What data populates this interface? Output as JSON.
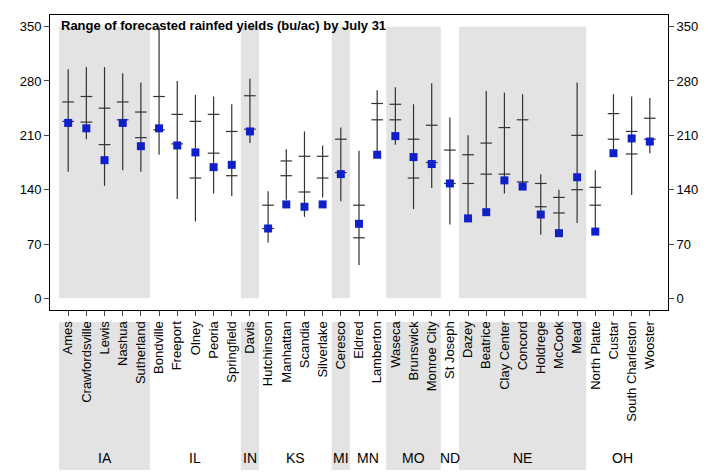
{
  "chart_data": {
    "type": "range",
    "title": "Range of forecasted rainfed yields (bu/ac) by July 31",
    "categories": [
      "Ames",
      "Crawfordsville",
      "Lewis",
      "Nashua",
      "Sutherland",
      "Bondville",
      "Freeport",
      "Olney",
      "Peoria",
      "Springfield",
      "Davis",
      "Hutchinson",
      "Manhattan",
      "Scandia",
      "Silverlake",
      "Ceresco",
      "Eldred",
      "Lamberton",
      "Waseca",
      "Brunswick",
      "Monroe City",
      "St Joseph",
      "Dazey",
      "Beatrice",
      "Clay Center",
      "Concord",
      "Holdrege",
      "McCook",
      "Mead",
      "North Platte",
      "Custar",
      "South Charleston",
      "Wooster"
    ],
    "states": [
      "IA",
      "IA",
      "IA",
      "IA",
      "IA",
      "IL",
      "IL",
      "IL",
      "IL",
      "IL",
      "IN",
      "KS",
      "KS",
      "KS",
      "KS",
      "MI",
      "MN",
      "MN",
      "MO",
      "MO",
      "MO",
      "ND",
      "NE",
      "NE",
      "NE",
      "NE",
      "NE",
      "NE",
      "NE",
      "OH",
      "OH",
      "OH",
      "OH"
    ],
    "min": [
      163,
      205,
      145,
      165,
      163,
      185,
      128,
      99,
      135,
      132,
      200,
      72,
      127,
      105,
      130,
      125,
      43,
      185,
      198,
      115,
      142,
      95,
      105,
      110,
      135,
      140,
      82,
      85,
      97,
      85,
      185,
      133,
      187
    ],
    "max": [
      295,
      298,
      298,
      290,
      278,
      350,
      280,
      262,
      260,
      250,
      283,
      138,
      192,
      215,
      197,
      220,
      190,
      268,
      272,
      250,
      277,
      233,
      210,
      267,
      265,
      263,
      160,
      140,
      278,
      165,
      263,
      260,
      258
    ],
    "upper": [
      253,
      260,
      245,
      253,
      240,
      260,
      237,
      228,
      237,
      215,
      261,
      120,
      177,
      183,
      183,
      205,
      120,
      251,
      250,
      205,
      223,
      191,
      185,
      200,
      220,
      230,
      148,
      130,
      210,
      143,
      238,
      215,
      232
    ],
    "lower": [
      228,
      227,
      198,
      230,
      207,
      217,
      199,
      155,
      187,
      158,
      218,
      90,
      158,
      137,
      155,
      162,
      78,
      230,
      230,
      155,
      175,
      148,
      148,
      160,
      160,
      150,
      118,
      110,
      140,
      120,
      205,
      186,
      205
    ],
    "values": [
      226,
      219,
      178,
      226,
      196,
      219,
      197,
      188,
      169,
      172,
      215,
      90,
      121,
      118,
      121,
      160,
      96,
      185,
      209,
      182,
      173,
      148,
      103,
      111,
      152,
      144,
      108,
      84,
      156,
      86,
      187,
      206,
      202
    ],
    "color": "#1020c8",
    "line_color": "#333333",
    "ylim": [
      -15,
      365
    ],
    "yticks": [
      0,
      70,
      140,
      210,
      280,
      350
    ]
  }
}
